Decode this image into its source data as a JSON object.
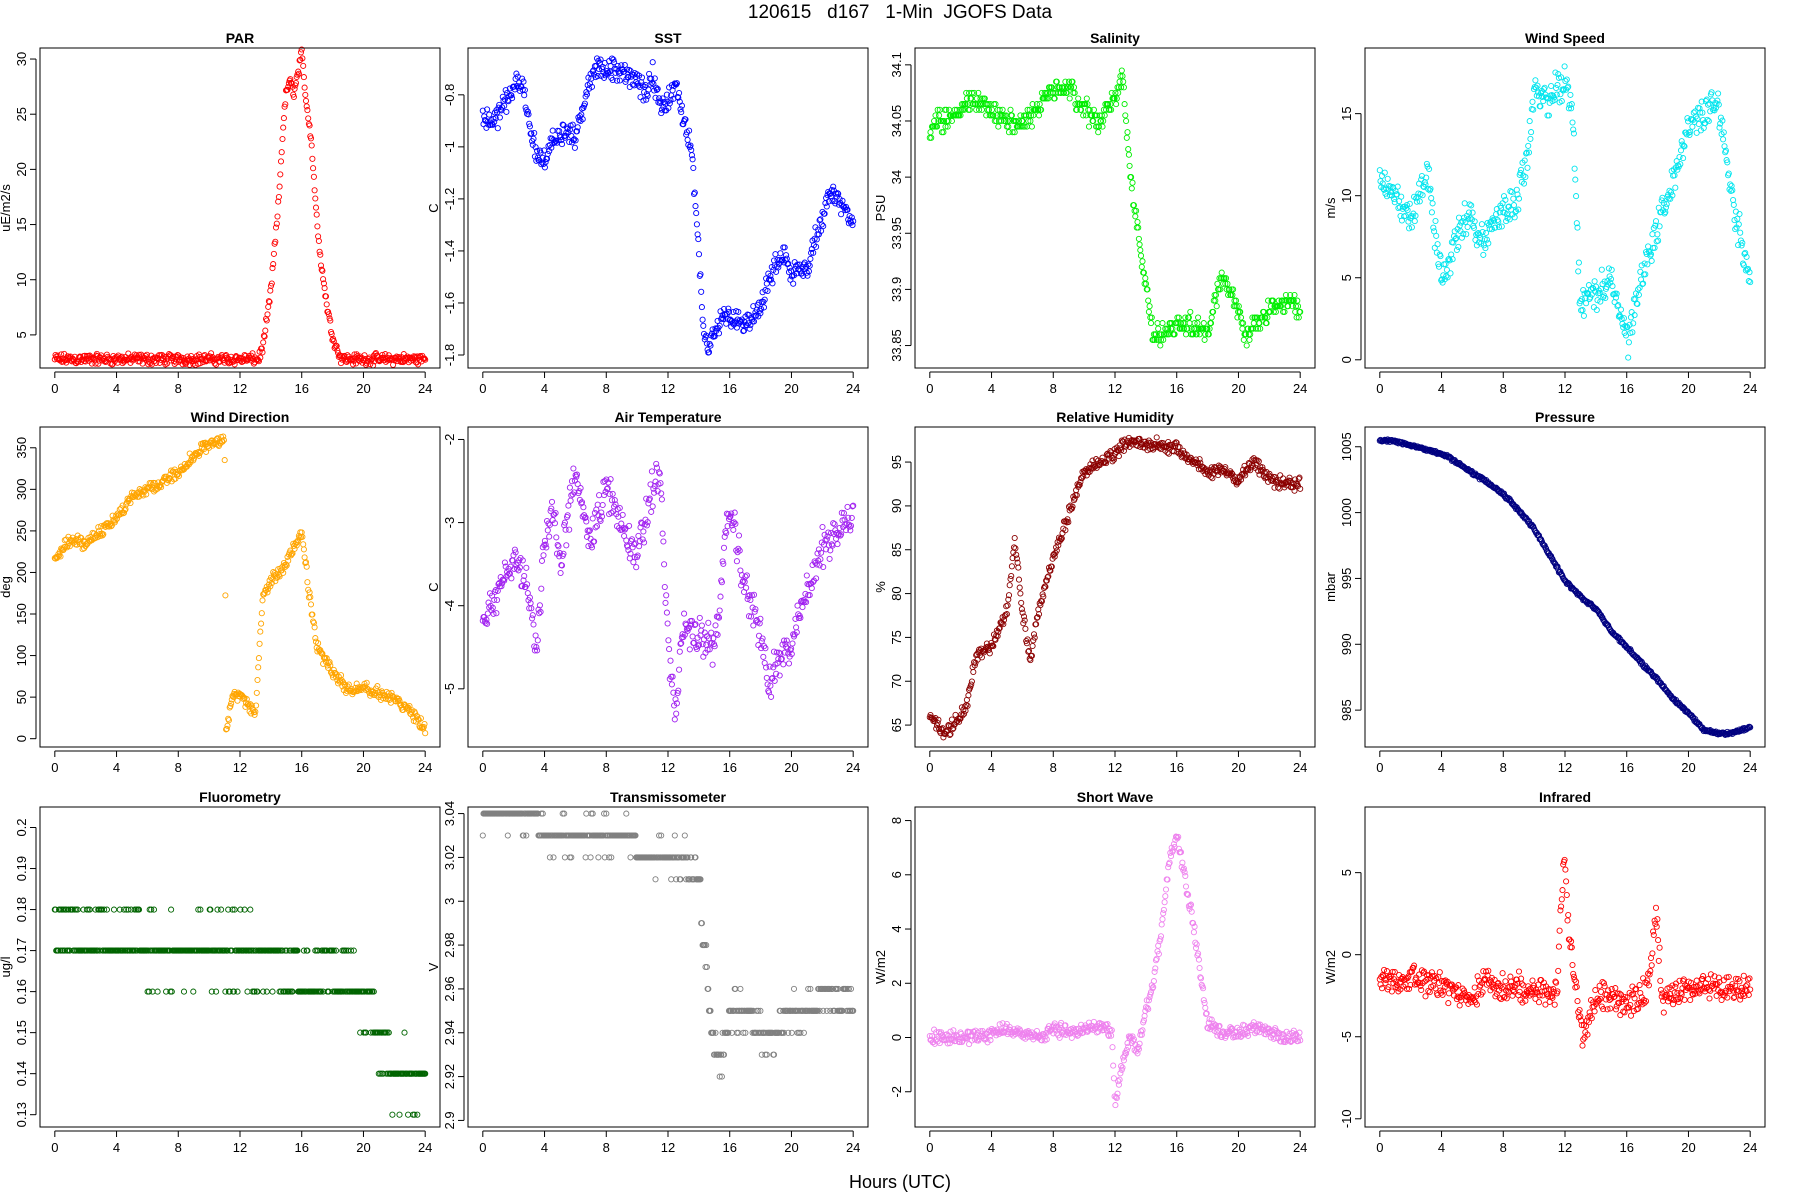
{
  "figure": {
    "title": "120615   d167   1-Min  JGOFS Data",
    "xlabel": "Hours (UTC)"
  },
  "chart_data": [
    {
      "type": "scatter",
      "title": "PAR",
      "ylabel": "uE/m2/s",
      "color": "#ff0000",
      "xlim": [
        0,
        24
      ],
      "ylim": [
        2,
        31
      ],
      "yticks": [
        5,
        10,
        15,
        20,
        25,
        30
      ],
      "xticks": [
        0,
        4,
        8,
        12,
        16,
        20,
        24
      ],
      "marker": "open-circle",
      "x": [
        0,
        13.2,
        13.5,
        14,
        14.5,
        14.8,
        15,
        15.2,
        15.5,
        15.8,
        16,
        16.3,
        16.6,
        17,
        17.3,
        17.6,
        17.9,
        18.2,
        18.5,
        19,
        24
      ],
      "y": [
        2.8,
        2.8,
        4,
        9,
        17,
        24,
        27,
        28,
        27,
        29,
        30.5,
        26,
        23,
        15,
        11,
        8,
        5.5,
        4,
        3,
        2.8,
        2.8
      ],
      "noise": 0.6
    },
    {
      "type": "scatter",
      "title": "SST",
      "ylabel": "C",
      "color": "#0000ff",
      "xlim": [
        0,
        24
      ],
      "ylim": [
        -1.85,
        -0.62
      ],
      "yticks": [
        -0.8,
        -1.0,
        -1.2,
        -1.4,
        -1.6,
        -1.8
      ],
      "xticks": [
        0,
        4,
        8,
        12,
        16,
        20,
        24
      ],
      "marker": "open-circle",
      "x": [
        0,
        1,
        1.5,
        2,
        2.6,
        3,
        3.5,
        4,
        4.5,
        5,
        5.5,
        6,
        6.5,
        7,
        7.5,
        8,
        9,
        10,
        10.5,
        11,
        11.5,
        12,
        12.5,
        13,
        13.5,
        14,
        14.3,
        14.6,
        15,
        15.5,
        16,
        17,
        18,
        18.5,
        19,
        19.5,
        20,
        20.5,
        21,
        21.5,
        22,
        22.5,
        23,
        23.5,
        24
      ],
      "y": [
        -0.9,
        -0.88,
        -0.82,
        -0.77,
        -0.76,
        -0.9,
        -1.03,
        -1.05,
        -0.98,
        -0.95,
        -0.93,
        -0.97,
        -0.85,
        -0.73,
        -0.7,
        -0.7,
        -0.72,
        -0.74,
        -0.8,
        -0.72,
        -0.85,
        -0.82,
        -0.77,
        -0.9,
        -1.0,
        -1.4,
        -1.7,
        -1.78,
        -1.72,
        -1.66,
        -1.65,
        -1.68,
        -1.62,
        -1.52,
        -1.45,
        -1.4,
        -1.5,
        -1.45,
        -1.48,
        -1.35,
        -1.28,
        -1.17,
        -1.2,
        -1.25,
        -1.28
      ],
      "noise": 0.05
    },
    {
      "type": "scatter",
      "title": "Salinity",
      "ylabel": "PSU",
      "color": "#00ee00",
      "xlim": [
        0,
        24
      ],
      "ylim": [
        33.83,
        34.115
      ],
      "yticks": [
        33.85,
        33.9,
        33.95,
        34.0,
        34.05,
        34.1
      ],
      "xticks": [
        0,
        4,
        8,
        12,
        16,
        20,
        24
      ],
      "marker": "open-circle",
      "x": [
        0,
        0.5,
        1,
        2,
        3,
        4,
        5,
        6,
        7,
        8,
        9,
        10,
        11,
        12,
        12.5,
        13,
        13.5,
        14,
        14.5,
        15,
        16,
        17,
        18,
        18.5,
        19,
        20,
        20.5,
        21,
        22,
        23,
        24
      ],
      "y": [
        34.04,
        34.05,
        34.05,
        34.06,
        34.07,
        34.06,
        34.05,
        34.05,
        34.06,
        34.08,
        34.08,
        34.06,
        34.05,
        34.07,
        34.09,
        34.0,
        33.95,
        33.9,
        33.86,
        33.86,
        33.87,
        33.87,
        33.86,
        33.89,
        33.91,
        33.88,
        33.86,
        33.87,
        33.88,
        33.89,
        33.88
      ],
      "noise": 0.012,
      "quantum": 0.005
    },
    {
      "type": "scatter",
      "title": "Wind Speed",
      "ylabel": "m/s",
      "color": "#00e5ee",
      "xlim": [
        0,
        24
      ],
      "ylim": [
        -0.5,
        19
      ],
      "yticks": [
        0,
        5,
        10,
        15
      ],
      "xticks": [
        0,
        4,
        8,
        12,
        16,
        20,
        24
      ],
      "marker": "open-circle",
      "x": [
        0,
        1,
        2,
        3,
        4,
        5,
        6,
        6.5,
        7,
        8,
        9,
        9.5,
        10,
        11,
        12,
        12.5,
        13,
        13.5,
        14,
        15,
        15.5,
        16,
        17,
        18,
        19,
        20,
        21,
        22,
        22.5,
        23,
        24
      ],
      "y": [
        11,
        10,
        8.5,
        12,
        5,
        7.5,
        9,
        7,
        8,
        9,
        10,
        12,
        16.5,
        16,
        17,
        15,
        3,
        4,
        4,
        5,
        3,
        1,
        5,
        8,
        11,
        14,
        15,
        15.5,
        12,
        9,
        5
      ],
      "noise": 1.3
    },
    {
      "type": "scatter",
      "title": "Wind Direction",
      "ylabel": "deg",
      "color": "#ffa500",
      "xlim": [
        0,
        24
      ],
      "ylim": [
        -10,
        375
      ],
      "yticks": [
        0,
        50,
        100,
        150,
        200,
        250,
        300,
        350
      ],
      "xticks": [
        0,
        4,
        8,
        12,
        16,
        20,
        24
      ],
      "marker": "open-circle",
      "x": [
        0,
        1,
        2,
        3,
        4,
        5,
        6,
        7,
        8,
        9,
        10,
        11,
        11.1,
        11.5,
        12,
        12.5,
        13,
        13.5,
        14,
        15,
        16,
        16.5,
        17,
        18,
        19,
        20,
        21,
        22,
        23,
        24
      ],
      "y": [
        215,
        240,
        235,
        250,
        265,
        290,
        300,
        310,
        320,
        340,
        355,
        358,
        5,
        50,
        55,
        40,
        30,
        175,
        190,
        210,
        250,
        170,
        110,
        80,
        60,
        60,
        55,
        50,
        35,
        10
      ],
      "noise": 9
    },
    {
      "type": "scatter",
      "title": "Air Temperature",
      "ylabel": "C",
      "color": "#a020f0",
      "xlim": [
        0,
        24
      ],
      "ylim": [
        -5.7,
        -1.85
      ],
      "yticks": [
        -2,
        -3,
        -4,
        -5
      ],
      "xticks": [
        0,
        4,
        8,
        12,
        16,
        20,
        24
      ],
      "marker": "open-circle",
      "x": [
        0,
        1,
        2,
        3,
        3.5,
        4,
        4.5,
        5,
        6,
        7,
        8,
        9,
        10,
        11,
        11.5,
        12,
        12.5,
        13,
        14,
        15,
        16,
        17,
        18,
        18.5,
        19,
        20,
        21,
        22,
        23,
        24
      ],
      "y": [
        -4.2,
        -3.8,
        -3.4,
        -3.8,
        -4.5,
        -3.2,
        -2.8,
        -3.5,
        -2.4,
        -3.2,
        -2.6,
        -3.0,
        -3.4,
        -2.6,
        -2.4,
        -4.5,
        -5.3,
        -4.2,
        -4.4,
        -4.5,
        -2.8,
        -3.8,
        -4.3,
        -5.0,
        -4.7,
        -4.5,
        -3.8,
        -3.3,
        -3.1,
        -2.9
      ],
      "noise": 0.28
    },
    {
      "type": "scatter",
      "title": "Relative Humidity",
      "ylabel": "%",
      "color": "#8b0000",
      "xlim": [
        0,
        24
      ],
      "ylim": [
        62.5,
        99
      ],
      "yticks": [
        65,
        70,
        75,
        80,
        85,
        90,
        95
      ],
      "xticks": [
        0,
        4,
        8,
        12,
        16,
        20,
        24
      ],
      "marker": "open-circle",
      "x": [
        0,
        1,
        2,
        2.5,
        3,
        4,
        5,
        5.5,
        6,
        6.5,
        7,
        8,
        9,
        10,
        11,
        12,
        13,
        14,
        15,
        16,
        17,
        18,
        19,
        20,
        21,
        22,
        23,
        24
      ],
      "y": [
        66,
        64,
        66,
        68,
        73,
        74,
        78,
        86,
        78,
        72,
        78,
        84,
        89,
        94,
        95,
        96,
        97.5,
        97,
        97,
        96.5,
        95,
        94,
        94,
        93,
        95,
        93,
        92.5,
        92.5
      ],
      "noise": 0.9
    },
    {
      "type": "scatter",
      "title": "Pressure",
      "ylabel": "mbar",
      "color": "#000080",
      "xlim": [
        0,
        24
      ],
      "ylim": [
        982.2,
        1006.5
      ],
      "yticks": [
        985,
        990,
        995,
        1000,
        1005
      ],
      "xticks": [
        0,
        4,
        8,
        12,
        16,
        20,
        24
      ],
      "marker": "open-circle",
      "x": [
        0,
        1,
        2,
        3,
        4,
        5,
        6,
        7,
        8,
        9,
        10,
        11,
        12,
        13,
        14,
        15,
        16,
        17,
        18,
        19,
        20,
        21,
        22,
        23,
        24
      ],
      "y": [
        1005.5,
        1005.4,
        1005.1,
        1004.8,
        1004.5,
        1003.8,
        1003.0,
        1002.3,
        1001.4,
        1000.2,
        998.8,
        996.8,
        994.8,
        993.6,
        992.7,
        991.0,
        989.8,
        988.5,
        987.3,
        985.9,
        984.8,
        983.5,
        983.2,
        983.3,
        983.7
      ],
      "noise": 0.15
    },
    {
      "type": "scatter",
      "title": "Fluorometry",
      "ylabel": "ug/l",
      "color": "#006400",
      "xlim": [
        0,
        24
      ],
      "ylim": [
        0.127,
        0.205
      ],
      "yticks": [
        0.13,
        0.14,
        0.15,
        0.16,
        0.17,
        0.18,
        0.19,
        0.2
      ],
      "xticks": [
        0,
        4,
        8,
        12,
        16,
        20,
        24
      ],
      "marker": "open-circle",
      "x": [
        0,
        2,
        4,
        6,
        8,
        10,
        12,
        14,
        15,
        16,
        17,
        18,
        19,
        20,
        21,
        21.5,
        22,
        23,
        24
      ],
      "y": [
        0.175,
        0.173,
        0.172,
        0.171,
        0.17,
        0.17,
        0.17,
        0.168,
        0.165,
        0.162,
        0.163,
        0.166,
        0.162,
        0.16,
        0.15,
        0.145,
        0.14,
        0.138,
        0.14
      ],
      "noise": 0.009,
      "quantum": 0.01
    },
    {
      "type": "scatter",
      "title": "Transmissometer",
      "ylabel": "V",
      "color": "#808080",
      "xlim": [
        0,
        24
      ],
      "ylim": [
        2.897,
        3.043
      ],
      "yticks": [
        2.9,
        2.92,
        2.94,
        2.96,
        2.98,
        3.0,
        3.02,
        3.04
      ],
      "xticks": [
        0,
        4,
        8,
        12,
        16,
        20,
        24
      ],
      "marker": "open-circle",
      "x": [
        0,
        3.5,
        3.6,
        8,
        9.8,
        10,
        11,
        12,
        13,
        14,
        14.5,
        15,
        15.5,
        16,
        17,
        18,
        19,
        20,
        21,
        22,
        23,
        24
      ],
      "y": [
        3.04,
        3.04,
        3.03,
        3.03,
        3.03,
        3.02,
        3.02,
        3.02,
        3.02,
        3.01,
        2.97,
        2.93,
        2.93,
        2.95,
        2.95,
        2.94,
        2.94,
        2.95,
        2.95,
        2.955,
        2.955,
        2.955
      ],
      "noise": 0.008,
      "quantum": 0.01
    },
    {
      "type": "scatter",
      "title": "Short Wave",
      "ylabel": "W/m2",
      "color": "#ee82ee",
      "xlim": [
        0,
        24
      ],
      "ylim": [
        -3.3,
        8.5
      ],
      "yticks": [
        -2,
        0,
        2,
        4,
        6,
        8
      ],
      "xticks": [
        0,
        4,
        8,
        12,
        16,
        20,
        24
      ],
      "marker": "open-circle",
      "x": [
        0,
        2,
        4,
        5,
        6,
        7,
        8,
        9,
        10,
        11,
        11.8,
        12,
        12.5,
        13,
        13.5,
        14,
        14.5,
        15,
        15.5,
        16,
        16.5,
        17,
        17.5,
        18,
        19,
        20,
        21,
        22,
        23,
        24
      ],
      "y": [
        0,
        0,
        0.1,
        0.3,
        0.2,
        0,
        0.3,
        0.2,
        0.3,
        0.4,
        0.2,
        -2.5,
        -1,
        0,
        -0.5,
        1,
        2,
        4,
        6.5,
        7.5,
        6,
        4.5,
        2.5,
        0.5,
        0.2,
        0.1,
        0.4,
        0.2,
        0,
        0
      ],
      "noise": 0.3
    },
    {
      "type": "scatter",
      "title": "Infrared",
      "ylabel": "W/m2",
      "color": "#ff0000",
      "xlim": [
        0,
        24
      ],
      "ylim": [
        -10.5,
        9
      ],
      "yticks": [
        -10,
        -5,
        0,
        5
      ],
      "xticks": [
        0,
        4,
        8,
        12,
        16,
        20,
        24
      ],
      "marker": "open-circle",
      "x": [
        0,
        2,
        4,
        5,
        6,
        7,
        8,
        10,
        11,
        11.5,
        11.9,
        12.3,
        12.8,
        13.2,
        14,
        16,
        17,
        17.5,
        17.9,
        18.3,
        19,
        20,
        22,
        24
      ],
      "y": [
        -1.5,
        -1.5,
        -2,
        -2.5,
        -2.5,
        -1.5,
        -2,
        -2,
        -2.5,
        -2,
        6,
        1,
        -3,
        -5,
        -2.5,
        -3,
        -2.5,
        -1.5,
        3,
        -3,
        -2.5,
        -2,
        -2,
        -2
      ],
      "noise": 1.0
    }
  ]
}
